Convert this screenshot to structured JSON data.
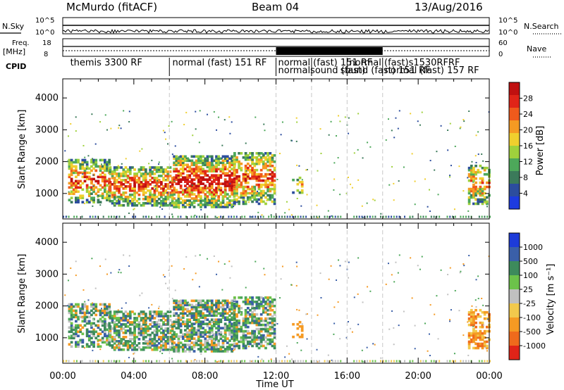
{
  "header": {
    "station": "McMurdo (fitACF)",
    "beam": "Beam 04",
    "date": "13/Aug/2016"
  },
  "panels": {
    "nsky_label": "N.Sky",
    "nsearch_label": "N.Search",
    "noise_ticks": [
      "10^5",
      "10^0"
    ],
    "freq_label_1": "Freq.",
    "freq_label_2": "[MHz]",
    "freq_ticks": [
      "18",
      "8"
    ],
    "nave_label": "Nave",
    "nave_ticks": [
      "60",
      "0"
    ],
    "cpid_label": "CPID",
    "cpid_entries": [
      {
        "text": "themis 3300 RF",
        "row": 0,
        "x": 0.3
      },
      {
        "text": "normal (fast) 151 RF",
        "row": 0,
        "x": 6.05
      },
      {
        "text": "normal (fast) 151 RF",
        "row": 0,
        "x": 12.0
      },
      {
        "text": "normalsound (fast)",
        "row": 1,
        "x": 12.0
      },
      {
        "text": "normal (fast)s1530RFRF",
        "row": 0,
        "x": 16.0
      },
      {
        "text": "sound (fast) 151 RF",
        "row": 1,
        "x": 15.5
      },
      {
        "text": "normal (fast) 157 RF",
        "row": 1,
        "x": 18.0
      }
    ]
  },
  "chart_data": [
    {
      "type": "heatmap",
      "panel": "power",
      "ylabel": "Slant Range [km]",
      "xlabel": "",
      "xlim": [
        0,
        24
      ],
      "ylim": [
        200,
        4600
      ],
      "yticks": [
        1000,
        2000,
        3000,
        4000
      ],
      "colorbar": {
        "label": "Power [dB]",
        "ticks": [
          4,
          8,
          12,
          16,
          20,
          24,
          28
        ],
        "range": [
          0,
          32
        ],
        "colors": [
          "#1d3be0",
          "#2c4d9e",
          "#3b7a5a",
          "#4da85a",
          "#9fd13c",
          "#f0cf2e",
          "#f59a23",
          "#ef5a1c",
          "#e02418",
          "#c01010"
        ]
      },
      "x_gridlines": [
        6,
        12,
        14,
        16,
        18
      ]
    },
    {
      "type": "heatmap",
      "panel": "velocity",
      "ylabel": "Slant Range [km]",
      "xlabel": "Time UT",
      "xlim": [
        0,
        24
      ],
      "ylim": [
        200,
        4600
      ],
      "yticks": [
        1000,
        2000,
        3000,
        4000
      ],
      "xticks": [
        "00:00",
        "04:00",
        "08:00",
        "12:00",
        "16:00",
        "20:00",
        "00:00"
      ],
      "colorbar": {
        "label": "Velocity [m s⁻¹]",
        "ticks": [
          "1000",
          "500",
          "100",
          "25",
          "-25",
          "-100",
          "-500",
          "-1000"
        ],
        "colors": [
          "#1d3bd9",
          "#3a5fa8",
          "#3d8a5c",
          "#6cc24a",
          "#c0c0c0",
          "#f2c94c",
          "#f59a23",
          "#ef6a1c",
          "#e02418"
        ]
      },
      "x_gridlines": [
        6,
        12,
        14,
        16,
        18
      ]
    }
  ]
}
